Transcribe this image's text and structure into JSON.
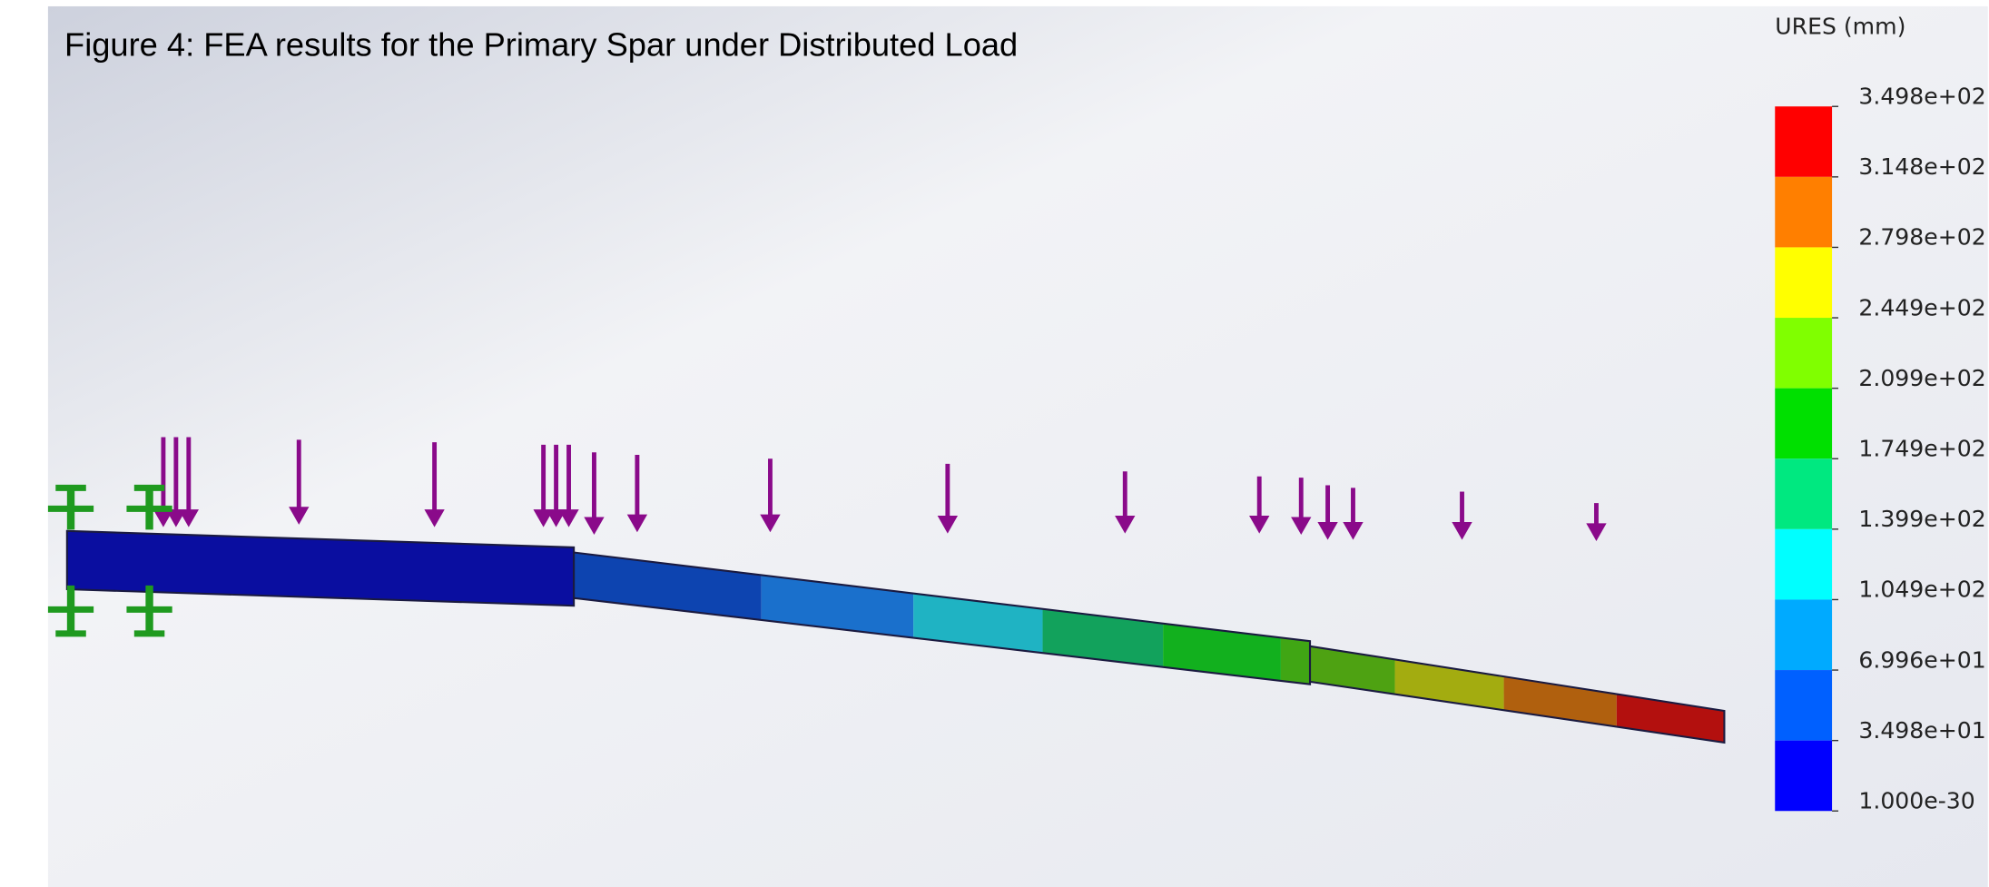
{
  "header": {
    "title": "Figure 4: FEA results for the Primary Spar under Distributed Load"
  },
  "legend": {
    "title": "URES (mm)",
    "labels": [
      "3.498e+02",
      "3.148e+02",
      "2.798e+02",
      "2.449e+02",
      "2.099e+02",
      "1.749e+02",
      "1.399e+02",
      "1.049e+02",
      "6.996e+01",
      "3.498e+01",
      "1.000e-30"
    ]
  }
}
